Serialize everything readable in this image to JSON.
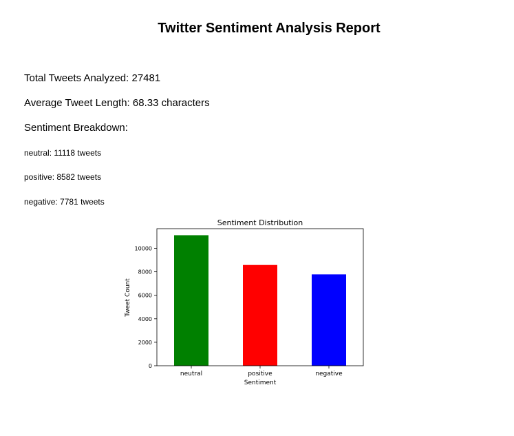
{
  "report": {
    "title": "Twitter Sentiment Analysis Report",
    "total_line": "Total Tweets Analyzed: 27481",
    "avg_line": "Average Tweet Length: 68.33 characters",
    "breakdown_heading": "Sentiment Breakdown:",
    "breakdown": [
      "neutral: 11118 tweets",
      "positive: 8582 tweets",
      "negative: 7781 tweets"
    ]
  },
  "chart_data": {
    "type": "bar",
    "title": "Sentiment Distribution",
    "xlabel": "Sentiment",
    "ylabel": "Tweet Count",
    "categories": [
      "neutral",
      "positive",
      "negative"
    ],
    "values": [
      11118,
      8582,
      7781
    ],
    "colors": [
      "#008000",
      "#ff0000",
      "#0000ff"
    ],
    "ylim": [
      0,
      11674
    ],
    "yticks": [
      0,
      2000,
      4000,
      6000,
      8000,
      10000
    ],
    "grid": false
  }
}
